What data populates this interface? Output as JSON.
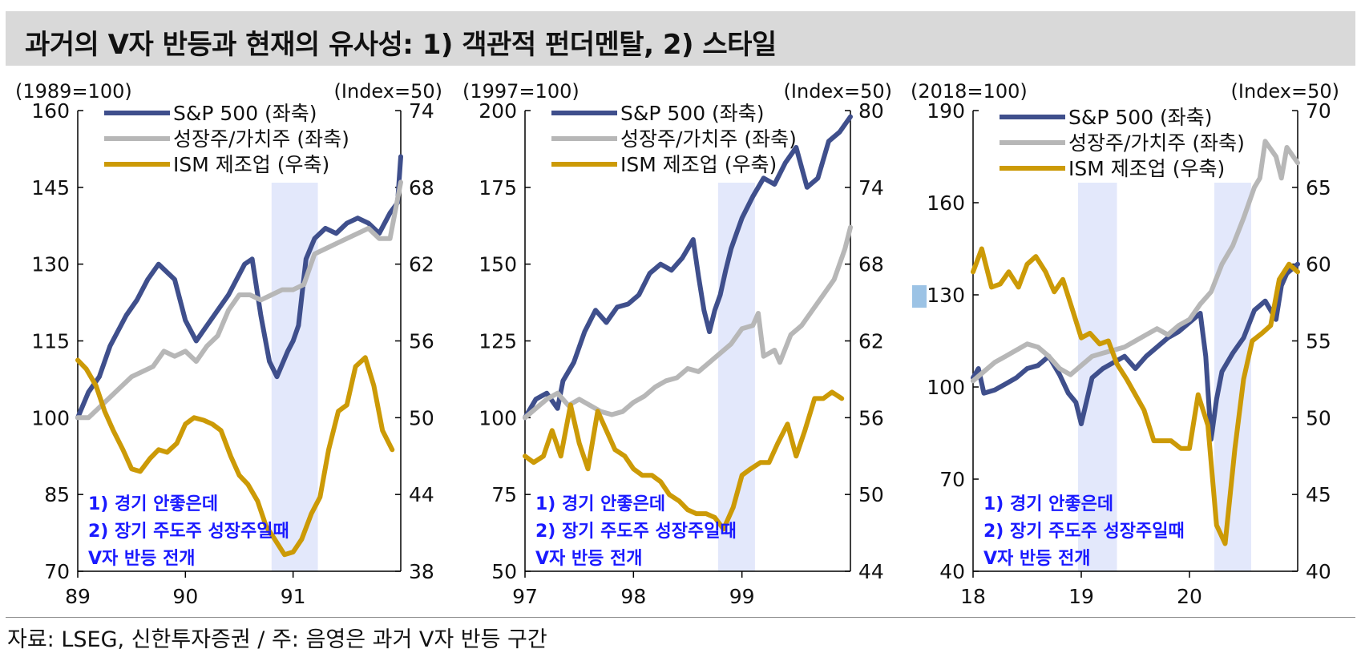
{
  "title": "과거의 V자 반등과 현재의 유사성: 1) 객관적 펀더멘탈, 2) 스타일",
  "source": "자료: LSEG, 신한투자증권 / 주: 음영은 과거 V자 반등 구간",
  "colors": {
    "sp500": "#3f4f8c",
    "growth_value": "#b7b7b7",
    "ism": "#cc9a06",
    "shade": "#e3e8fb",
    "annotation": "#1a1aff"
  },
  "chart_data": [
    {
      "type": "line",
      "left_unit": "(1989=100)",
      "right_unit": "(Index=50)",
      "ylim_left": [
        70,
        160
      ],
      "yticks_left": [
        "160",
        "145",
        "130",
        "115",
        "100",
        "85",
        "70"
      ],
      "ylim_right": [
        38,
        74
      ],
      "yticks_right": [
        "74",
        "68",
        "62",
        "56",
        "50",
        "44",
        "38"
      ],
      "xlim": [
        1989,
        1992
      ],
      "xticks": [
        {
          "x": 1989,
          "label": "89"
        },
        {
          "x": 1990,
          "label": "90"
        },
        {
          "x": 1991,
          "label": "91"
        }
      ],
      "shade": [
        1990.8,
        1991.23
      ],
      "legend": [
        "S&P 500 (좌축)",
        "성장주/가치주 (좌축)",
        "ISM 제조업 (우축)"
      ],
      "annotation": [
        "1) 경기 안좋은데",
        "2) 장기 주도주 성장주일때",
        "V자 반등 전개"
      ],
      "series": [
        {
          "name": "S&P 500 (좌축)",
          "axis": "left",
          "color": "#3f4f8c",
          "x": [
            1989.0,
            1989.1,
            1989.2,
            1989.3,
            1989.45,
            1989.55,
            1989.65,
            1989.75,
            1989.9,
            1990.0,
            1990.1,
            1990.2,
            1990.3,
            1990.4,
            1990.55,
            1990.62,
            1990.7,
            1990.78,
            1990.85,
            1990.95,
            1991.0,
            1991.05,
            1991.12,
            1991.2,
            1991.3,
            1991.4,
            1991.5,
            1991.6,
            1991.7,
            1991.8,
            1991.9,
            1991.97,
            1992.0
          ],
          "y": [
            100,
            105,
            108,
            114,
            120,
            123,
            127,
            130,
            127,
            119,
            115,
            118,
            121,
            124,
            130,
            131,
            120,
            111,
            108,
            113,
            115,
            118,
            131,
            135,
            137,
            136,
            138,
            139,
            138,
            136,
            140,
            142,
            151
          ]
        },
        {
          "name": "성장주/가치주 (좌축)",
          "axis": "left",
          "color": "#b7b7b7",
          "x": [
            1989.0,
            1989.1,
            1989.2,
            1989.3,
            1989.4,
            1989.5,
            1989.6,
            1989.7,
            1989.8,
            1989.9,
            1990.0,
            1990.1,
            1990.2,
            1990.3,
            1990.4,
            1990.5,
            1990.6,
            1990.7,
            1990.8,
            1990.9,
            1991.0,
            1991.1,
            1991.2,
            1991.3,
            1991.4,
            1991.5,
            1991.6,
            1991.7,
            1991.8,
            1991.9,
            1992.0
          ],
          "y": [
            100,
            100,
            102,
            104,
            106,
            108,
            109,
            110,
            113,
            112,
            113,
            111,
            114,
            116,
            121,
            124,
            124,
            123,
            124,
            125,
            125,
            126,
            132,
            133,
            134,
            135,
            136,
            137,
            135,
            135,
            146
          ]
        },
        {
          "name": "ISM 제조업 (우축)",
          "axis": "right",
          "color": "#cc9a06",
          "x": [
            1989.0,
            1989.08,
            1989.17,
            1989.25,
            1989.33,
            1989.42,
            1989.5,
            1989.58,
            1989.67,
            1989.75,
            1989.83,
            1989.92,
            1990.0,
            1990.08,
            1990.17,
            1990.25,
            1990.33,
            1990.42,
            1990.5,
            1990.58,
            1990.67,
            1990.75,
            1990.83,
            1990.92,
            1991.0,
            1991.08,
            1991.17,
            1991.25,
            1991.33,
            1991.42,
            1991.5,
            1991.58,
            1991.67,
            1991.75,
            1991.83,
            1991.92
          ],
          "y": [
            54.5,
            53.8,
            52.5,
            50.5,
            49,
            47.5,
            46,
            45.8,
            46.8,
            47.5,
            47.3,
            48,
            49.5,
            50,
            49.8,
            49.5,
            49,
            47,
            45.5,
            44.8,
            43.5,
            41.5,
            40.5,
            39.3,
            39.5,
            40.5,
            42.5,
            43.8,
            47.5,
            50.5,
            51,
            54,
            54.7,
            52.5,
            49,
            47.5
          ]
        }
      ]
    },
    {
      "type": "line",
      "left_unit": "(1997=100)",
      "right_unit": "(Index=50)",
      "ylim_left": [
        50,
        200
      ],
      "yticks_left": [
        "200",
        "175",
        "150",
        "125",
        "100",
        "75",
        "50"
      ],
      "ylim_right": [
        44,
        80
      ],
      "yticks_right": [
        "80",
        "74",
        "68",
        "62",
        "56",
        "50",
        "44"
      ],
      "xlim": [
        1997,
        2000
      ],
      "xticks": [
        {
          "x": 1997,
          "label": "97"
        },
        {
          "x": 1998,
          "label": "98"
        },
        {
          "x": 1999,
          "label": "99"
        }
      ],
      "shade": [
        1998.78,
        1999.12
      ],
      "legend": [
        "S&P 500 (좌축)",
        "성장주/가치주 (좌축)",
        "ISM 제조업 (우축)"
      ],
      "annotation": [
        "1) 경기 안좋은데",
        "2) 장기 주도주 성장주일때",
        "V자 반등 전개"
      ],
      "series": [
        {
          "name": "S&P 500 (좌축)",
          "axis": "left",
          "color": "#3f4f8c",
          "x": [
            1997.0,
            1997.1,
            1997.2,
            1997.3,
            1997.35,
            1997.45,
            1997.55,
            1997.65,
            1997.75,
            1997.85,
            1997.95,
            1998.05,
            1998.15,
            1998.25,
            1998.35,
            1998.45,
            1998.55,
            1998.6,
            1998.65,
            1998.7,
            1998.75,
            1998.8,
            1998.85,
            1998.9,
            1998.95,
            1999.0,
            1999.1,
            1999.2,
            1999.3,
            1999.4,
            1999.5,
            1999.6,
            1999.7,
            1999.8,
            1999.9,
            2000.0
          ],
          "y": [
            100,
            106,
            108,
            103,
            112,
            118,
            128,
            135,
            131,
            136,
            137,
            140,
            147,
            150,
            148,
            152,
            158,
            146,
            135,
            128,
            135,
            140,
            148,
            155,
            160,
            165,
            172,
            178,
            176,
            183,
            188,
            175,
            178,
            190,
            193,
            198
          ]
        },
        {
          "name": "성장주/가치주 (좌축)",
          "axis": "left",
          "color": "#b7b7b7",
          "x": [
            1997.0,
            1997.1,
            1997.2,
            1997.3,
            1997.4,
            1997.5,
            1997.6,
            1997.7,
            1997.8,
            1997.9,
            1998.0,
            1998.1,
            1998.2,
            1998.3,
            1998.4,
            1998.5,
            1998.6,
            1998.7,
            1998.8,
            1998.9,
            1999.0,
            1999.1,
            1999.15,
            1999.2,
            1999.3,
            1999.35,
            1999.45,
            1999.55,
            1999.65,
            1999.75,
            1999.85,
            1999.95,
            2000.0
          ],
          "y": [
            100,
            103,
            106,
            108,
            104,
            106,
            104,
            102,
            101,
            102,
            105,
            107,
            110,
            112,
            113,
            116,
            115,
            118,
            121,
            124,
            129,
            130,
            134,
            120,
            122,
            118,
            127,
            130,
            135,
            140,
            145,
            155,
            162
          ]
        },
        {
          "name": "ISM 제조업 (우축)",
          "axis": "right",
          "color": "#cc9a06",
          "x": [
            1997.0,
            1997.08,
            1997.17,
            1997.25,
            1997.33,
            1997.42,
            1997.5,
            1997.58,
            1997.67,
            1997.75,
            1997.83,
            1997.92,
            1998.0,
            1998.08,
            1998.17,
            1998.25,
            1998.33,
            1998.42,
            1998.5,
            1998.58,
            1998.67,
            1998.75,
            1998.83,
            1998.92,
            1999.0,
            1999.08,
            1999.17,
            1999.25,
            1999.33,
            1999.42,
            1999.5,
            1999.58,
            1999.67,
            1999.75,
            1999.83,
            1999.92
          ],
          "y": [
            53,
            52.5,
            53,
            55,
            53,
            57,
            54,
            52,
            56.5,
            55,
            53.5,
            53,
            52,
            51.5,
            51.5,
            51,
            50,
            49.5,
            48.8,
            48.5,
            48.5,
            48.2,
            47.3,
            49,
            51.5,
            52,
            52.5,
            52.5,
            54,
            55.5,
            53,
            55,
            57.5,
            57.5,
            58,
            57.5
          ]
        }
      ]
    },
    {
      "type": "line",
      "left_unit": "(2018=100)",
      "right_unit": "(Index=50)",
      "ylim_left": [
        40,
        190
      ],
      "yticks_left": [
        "190",
        "160",
        "130",
        "100",
        "70",
        "40"
      ],
      "ylim_right": [
        40,
        70
      ],
      "yticks_right": [
        "70",
        "65",
        "60",
        "55",
        "50",
        "45",
        "40"
      ],
      "xlim": [
        2018,
        2021
      ],
      "xticks": [
        {
          "x": 2018,
          "label": "18"
        },
        {
          "x": 2019,
          "label": "19"
        },
        {
          "x": 2020,
          "label": "20"
        }
      ],
      "shade_periods": [
        [
          2018.97,
          2019.33
        ],
        [
          2020.23,
          2020.57
        ]
      ],
      "legend": [
        "S&P 500 (좌축)",
        "성장주/가치주 (좌축)",
        "ISM 제조업 (우축)"
      ],
      "annotation": [
        "1) 경기 안좋은데",
        "2) 장기 주도주 성장주일때",
        "V자 반등 전개"
      ],
      "series": [
        {
          "name": "S&P 500 (좌축)",
          "axis": "left",
          "color": "#3f4f8c",
          "x": [
            2018.0,
            2018.05,
            2018.1,
            2018.2,
            2018.3,
            2018.4,
            2018.5,
            2018.6,
            2018.7,
            2018.8,
            2018.88,
            2018.95,
            2019.0,
            2019.1,
            2019.2,
            2019.3,
            2019.4,
            2019.5,
            2019.6,
            2019.7,
            2019.8,
            2019.9,
            2020.0,
            2020.1,
            2020.15,
            2020.2,
            2020.25,
            2020.3,
            2020.4,
            2020.5,
            2020.6,
            2020.7,
            2020.8,
            2020.85,
            2020.9,
            2021.0
          ],
          "y": [
            103,
            106,
            98,
            99,
            101,
            103,
            106,
            107,
            110,
            104,
            98,
            95,
            88,
            103,
            106,
            108,
            110,
            106,
            110,
            113,
            116,
            118,
            121,
            124,
            110,
            83,
            96,
            105,
            111,
            116,
            125,
            128,
            122,
            133,
            137,
            140
          ]
        },
        {
          "name": "성장주/가치주 (좌축)",
          "axis": "left",
          "color": "#b7b7b7",
          "x": [
            2018.0,
            2018.1,
            2018.2,
            2018.3,
            2018.4,
            2018.5,
            2018.6,
            2018.7,
            2018.8,
            2018.9,
            2019.0,
            2019.1,
            2019.2,
            2019.3,
            2019.4,
            2019.5,
            2019.6,
            2019.7,
            2019.8,
            2019.9,
            2020.0,
            2020.1,
            2020.2,
            2020.3,
            2020.4,
            2020.5,
            2020.6,
            2020.65,
            2020.7,
            2020.8,
            2020.85,
            2020.9,
            2021.0
          ],
          "y": [
            102,
            105,
            108,
            110,
            112,
            114,
            113,
            110,
            106,
            104,
            107,
            110,
            111,
            112,
            113,
            115,
            117,
            119,
            117,
            120,
            122,
            127,
            131,
            140,
            146,
            155,
            165,
            168,
            180,
            175,
            168,
            178,
            173
          ]
        },
        {
          "name": "ISM 제조업 (우축)",
          "axis": "right",
          "color": "#cc9a06",
          "x": [
            2018.0,
            2018.08,
            2018.17,
            2018.25,
            2018.33,
            2018.42,
            2018.5,
            2018.58,
            2018.67,
            2018.75,
            2018.83,
            2018.92,
            2019.0,
            2019.08,
            2019.17,
            2019.25,
            2019.33,
            2019.42,
            2019.5,
            2019.58,
            2019.67,
            2019.75,
            2019.83,
            2019.92,
            2020.0,
            2020.08,
            2020.17,
            2020.25,
            2020.33,
            2020.42,
            2020.5,
            2020.58,
            2020.67,
            2020.75,
            2020.83,
            2020.92,
            2021.0
          ],
          "y": [
            59.5,
            61,
            58.5,
            58.7,
            59.5,
            58.5,
            60,
            60.5,
            59.5,
            58.2,
            59,
            57,
            55.2,
            55.5,
            54.8,
            55,
            53.5,
            52.5,
            51.5,
            50.5,
            48.5,
            48.5,
            48.5,
            48,
            48,
            51.5,
            49.5,
            43,
            41.8,
            48,
            52.5,
            55,
            55.5,
            56,
            59,
            60,
            59.5
          ]
        }
      ]
    }
  ]
}
